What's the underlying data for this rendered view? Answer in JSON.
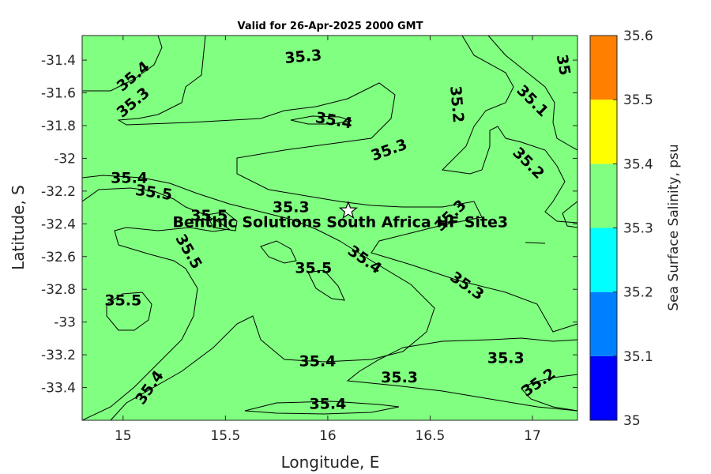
{
  "chart_data": {
    "type": "contour",
    "title": "Valid for 26-Apr-2025 2000 GMT",
    "xlabel": "Longitude, E",
    "ylabel": "Latitude, S",
    "xlim": [
      14.8,
      17.22
    ],
    "ylim": [
      -33.6,
      -31.25
    ],
    "x_ticks": [
      "15",
      "15.5",
      "16",
      "16.5",
      "17"
    ],
    "y_ticks": [
      "-31.4",
      "-31.6",
      "-31.8",
      "-32",
      "-32.2",
      "-32.4",
      "-32.6",
      "-32.8",
      "-33",
      "-33.2",
      "-33.4"
    ],
    "colorbar": {
      "label": "Sea Surface Salinity, psu",
      "levels": [
        35,
        35.1,
        35.2,
        35.3,
        35.4,
        35.5,
        35.6
      ],
      "tick_labels": [
        "35",
        "35.1",
        "35.2",
        "35.3",
        "35.4",
        "35.5",
        "35.6"
      ],
      "colors": [
        "#0000ff",
        "#0080ff",
        "#00ffff",
        "#80ff80",
        "#ffff00",
        "#ff8000"
      ]
    },
    "site": {
      "name": "Benthic Solutions South Africa HF Site3",
      "lon": 16.1,
      "lat": -32.32
    },
    "contour_labels": [
      {
        "text": "35.4",
        "lon": 15.05,
        "lat": -31.5,
        "angle": -40
      },
      {
        "text": "35.3",
        "lon": 15.05,
        "lat": -31.66,
        "angle": -40
      },
      {
        "text": "35.3",
        "lon": 15.88,
        "lat": -31.38,
        "angle": -5
      },
      {
        "text": "35.4",
        "lon": 16.03,
        "lat": -31.77,
        "angle": 10
      },
      {
        "text": "35.2",
        "lon": 16.63,
        "lat": -31.67,
        "angle": 85
      },
      {
        "text": "35",
        "lon": 17.15,
        "lat": -31.43,
        "angle": 80
      },
      {
        "text": "35.1",
        "lon": 17.0,
        "lat": -31.65,
        "angle": 45
      },
      {
        "text": "35.2",
        "lon": 16.98,
        "lat": -32.03,
        "angle": 45
      },
      {
        "text": "35.3",
        "lon": 16.3,
        "lat": -31.95,
        "angle": -20
      },
      {
        "text": "35.4",
        "lon": 15.03,
        "lat": -32.12,
        "angle": 0
      },
      {
        "text": "35.5",
        "lon": 15.15,
        "lat": -32.21,
        "angle": 8
      },
      {
        "text": "35.5",
        "lon": 15.42,
        "lat": -32.35,
        "angle": 0
      },
      {
        "text": "35.3",
        "lon": 15.82,
        "lat": -32.3,
        "angle": 0
      },
      {
        "text": "35.3",
        "lon": 16.6,
        "lat": -32.35,
        "angle": -45
      },
      {
        "text": "35.5",
        "lon": 15.32,
        "lat": -32.57,
        "angle": 60
      },
      {
        "text": "35.4",
        "lon": 16.18,
        "lat": -32.62,
        "angle": 35
      },
      {
        "text": "35.5",
        "lon": 15.93,
        "lat": -32.67,
        "angle": 0
      },
      {
        "text": "35.3",
        "lon": 16.68,
        "lat": -32.78,
        "angle": 35
      },
      {
        "text": "35.5",
        "lon": 15.0,
        "lat": -32.87,
        "angle": 0
      },
      {
        "text": "35.4",
        "lon": 15.95,
        "lat": -33.24,
        "angle": 0
      },
      {
        "text": "35.3",
        "lon": 16.87,
        "lat": -33.22,
        "angle": 0
      },
      {
        "text": "35.3",
        "lon": 16.35,
        "lat": -33.34,
        "angle": 0
      },
      {
        "text": "35.2",
        "lon": 17.03,
        "lat": -33.37,
        "angle": -35
      },
      {
        "text": "35.4",
        "lon": 15.13,
        "lat": -33.4,
        "angle": -55
      },
      {
        "text": "35.4",
        "lon": 16.0,
        "lat": -33.5,
        "angle": 0
      }
    ]
  }
}
